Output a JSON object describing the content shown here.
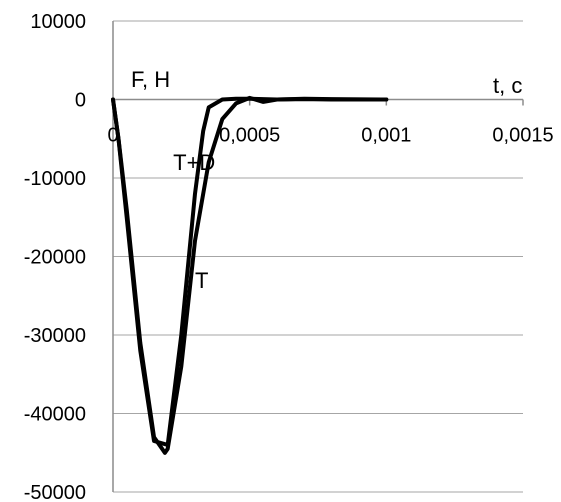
{
  "chart_data": {
    "type": "line",
    "title": "",
    "xlabel": "t, c",
    "ylabel": "F, H",
    "xlim": [
      0,
      0.0015
    ],
    "ylim": [
      -50000,
      10000
    ],
    "x_ticks": [
      "0",
      "0,0005",
      "0,001",
      "0,0015"
    ],
    "x_tick_values": [
      0,
      0.0005,
      0.001,
      0.0015
    ],
    "y_ticks": [
      "10000",
      "0",
      "-10000",
      "-20000",
      "-30000",
      "-40000",
      "-50000"
    ],
    "y_tick_values": [
      10000,
      0,
      -10000,
      -20000,
      -30000,
      -40000,
      -50000
    ],
    "grid": true,
    "line_color": "#000000",
    "grid_color": "#a6a6a6",
    "series": [
      {
        "name": "T+D",
        "x": [
          0,
          2e-05,
          5e-05,
          0.0001,
          0.00015,
          0.0002,
          0.00025,
          0.0003,
          0.00033,
          0.00035,
          0.0004,
          0.00045,
          0.0005,
          0.0006,
          0.0007,
          0.0008,
          0.001
        ],
        "y": [
          0,
          -5000,
          -15000,
          -32000,
          -43500,
          -44000,
          -30000,
          -12000,
          -4000,
          -1000,
          0,
          100,
          100,
          0,
          50,
          0,
          0
        ]
      },
      {
        "name": "T",
        "x": [
          0,
          2e-05,
          5e-05,
          0.0001,
          0.00015,
          0.00019,
          0.0002,
          0.00025,
          0.0003,
          0.00035,
          0.0004,
          0.00045,
          0.0005,
          0.00055,
          0.0006,
          0.0007,
          0.0008,
          0.001
        ],
        "y": [
          0,
          -5000,
          -14000,
          -31000,
          -43000,
          -45000,
          -44500,
          -34000,
          -18000,
          -8000,
          -2500,
          -500,
          200,
          -300,
          0,
          100,
          50,
          0
        ]
      }
    ],
    "annotations": [
      {
        "text": "T+D",
        "x": 0.00022,
        "y": -9000
      },
      {
        "text": "T",
        "x": 0.0003,
        "y": -24000
      }
    ]
  }
}
